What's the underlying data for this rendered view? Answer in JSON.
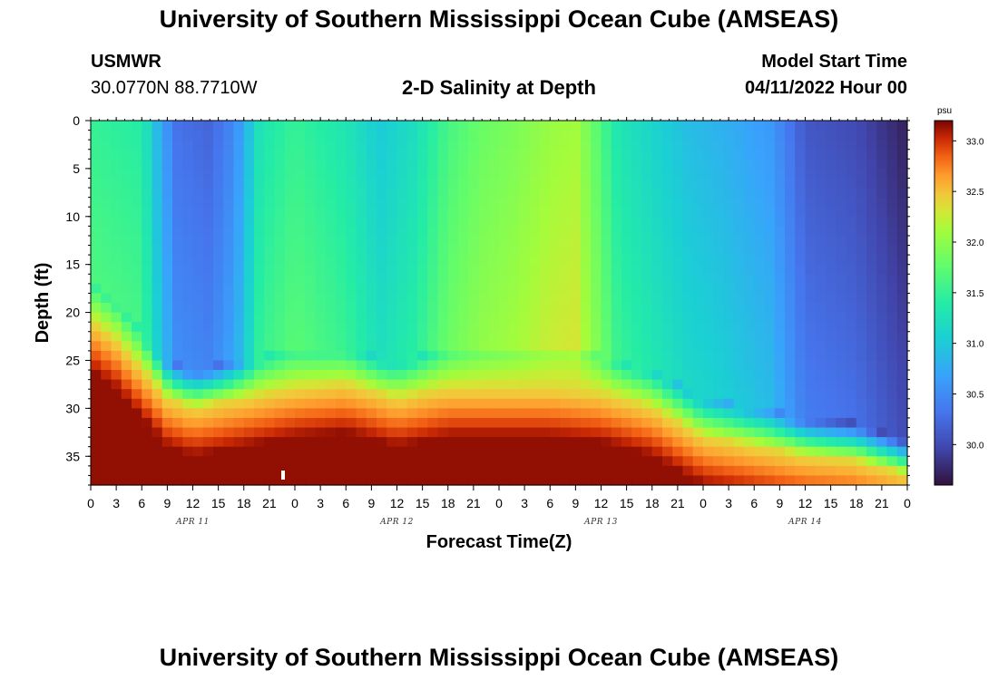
{
  "header": {
    "title_top": "University of Southern Mississippi Ocean Cube (AMSEAS)",
    "station_id": "USMWR",
    "coordinates": "30.0770N  88.7710W",
    "chart_title": "2-D Salinity at Depth",
    "model_start_label": "Model Start Time",
    "model_start_value": "04/11/2022 Hour 00",
    "title_bottom": "University of Southern Mississippi Ocean Cube (AMSEAS)"
  },
  "chart_data": {
    "type": "heatmap",
    "title": "2-D Salinity at Depth",
    "xlabel": "Forecast Time(Z)",
    "ylabel": "Depth (ft)",
    "x_range_hours": [
      0,
      96
    ],
    "y_range_ft": [
      0,
      38
    ],
    "x_tick_labels": [
      "0",
      "3",
      "6",
      "9",
      "12",
      "15",
      "18",
      "21",
      "0",
      "3",
      "6",
      "9",
      "12",
      "15",
      "18",
      "21",
      "0",
      "3",
      "6",
      "9",
      "12",
      "15",
      "18",
      "21",
      "0",
      "3",
      "6",
      "9",
      "12",
      "15",
      "18",
      "21",
      "0"
    ],
    "day_labels": [
      "APR 11",
      "APR 12",
      "APR 13",
      "APR 14"
    ],
    "y_ticks": [
      0,
      5,
      10,
      15,
      20,
      25,
      30,
      35
    ],
    "colorbar": {
      "units": "psu",
      "range": [
        29.6,
        33.2
      ],
      "ticks": [
        30.0,
        30.5,
        31.0,
        31.5,
        32.0,
        32.5,
        33.0
      ]
    },
    "surface_salinity": [
      {
        "hour": 0,
        "psu": 31.5
      },
      {
        "hour": 6,
        "psu": 31.4
      },
      {
        "hour": 8,
        "psu": 30.8
      },
      {
        "hour": 10,
        "psu": 30.3
      },
      {
        "hour": 14,
        "psu": 30.2
      },
      {
        "hour": 17,
        "psu": 30.5
      },
      {
        "hour": 20,
        "psu": 31.3
      },
      {
        "hour": 24,
        "psu": 31.5
      },
      {
        "hour": 30,
        "psu": 31.3
      },
      {
        "hour": 34,
        "psu": 31.0
      },
      {
        "hour": 38,
        "psu": 31.2
      },
      {
        "hour": 42,
        "psu": 31.6
      },
      {
        "hour": 46,
        "psu": 31.8
      },
      {
        "hour": 50,
        "psu": 31.9
      },
      {
        "hour": 54,
        "psu": 32.05
      },
      {
        "hour": 57,
        "psu": 32.1
      },
      {
        "hour": 59,
        "psu": 31.8
      },
      {
        "hour": 62,
        "psu": 31.3
      },
      {
        "hour": 66,
        "psu": 31.1
      },
      {
        "hour": 70,
        "psu": 30.9
      },
      {
        "hour": 74,
        "psu": 30.8
      },
      {
        "hour": 80,
        "psu": 30.6
      },
      {
        "hour": 84,
        "psu": 30.1
      },
      {
        "hour": 90,
        "psu": 30.0
      },
      {
        "hour": 96,
        "psu": 29.7
      }
    ],
    "bottom_layer_top_ft": [
      {
        "hour": 0,
        "depth": 21
      },
      {
        "hour": 3,
        "depth": 23
      },
      {
        "hour": 6,
        "depth": 26
      },
      {
        "hour": 9,
        "depth": 29
      },
      {
        "hour": 12,
        "depth": 30
      },
      {
        "hour": 18,
        "depth": 29
      },
      {
        "hour": 24,
        "depth": 28
      },
      {
        "hour": 30,
        "depth": 27.5
      },
      {
        "hour": 36,
        "depth": 29
      },
      {
        "hour": 42,
        "depth": 28
      },
      {
        "hour": 48,
        "depth": 28
      },
      {
        "hour": 54,
        "depth": 28
      },
      {
        "hour": 60,
        "depth": 28.5
      },
      {
        "hour": 66,
        "depth": 30
      },
      {
        "hour": 72,
        "depth": 33
      },
      {
        "hour": 78,
        "depth": 34
      },
      {
        "hour": 84,
        "depth": 35
      },
      {
        "hour": 90,
        "depth": 35.5
      },
      {
        "hour": 96,
        "depth": 37
      }
    ]
  }
}
